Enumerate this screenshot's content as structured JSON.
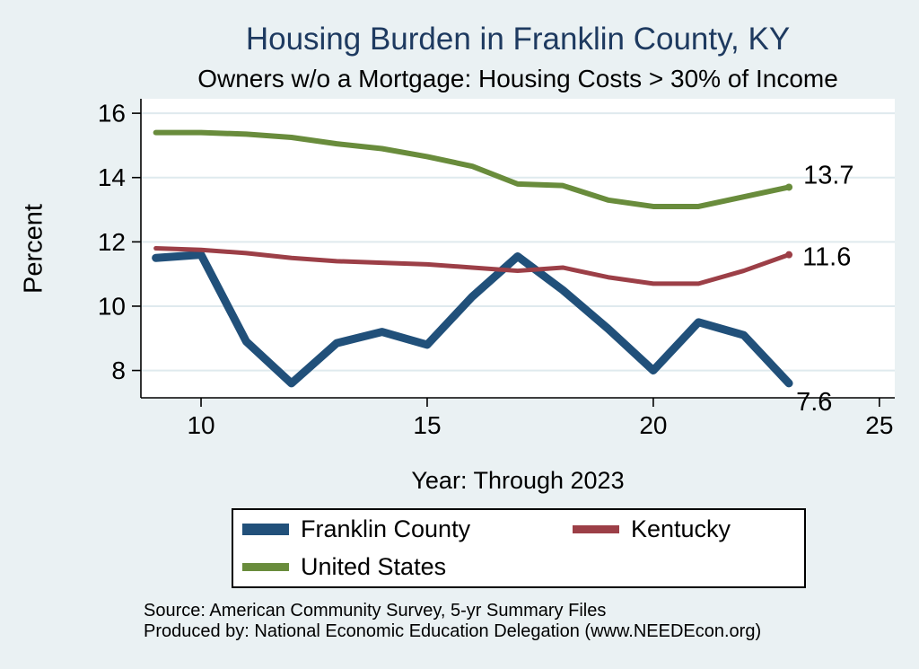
{
  "page": {
    "source_line1": "Source: American Community Survey, 5-yr Summary Files",
    "source_line2": "Produced by: National Economic Education Delegation (www.NEEDEcon.org)"
  },
  "colors": {
    "background": "#eaf1f3",
    "plot_background": "#ffffff",
    "gridline": "#dfeaee",
    "axis": "#000000",
    "title": "#1e3a60",
    "franklin_county": "#21507a",
    "kentucky": "#9c3f47",
    "united_states": "#698c3c"
  },
  "chart_data": {
    "type": "line",
    "title": "Housing Burden in Franklin County, KY",
    "subtitle": "Owners w/o a Mortgage: Housing Costs > 30% of Income",
    "xlabel": "Year: Through 2023",
    "ylabel": "Percent",
    "grid": true,
    "legend_position": "bottom",
    "x": [
      9,
      10,
      11,
      12,
      13,
      14,
      15,
      16,
      17,
      18,
      19,
      20,
      21,
      22,
      23
    ],
    "x_ticks": [
      10,
      15,
      20,
      25
    ],
    "y_ticks": [
      8,
      10,
      12,
      14,
      16
    ],
    "xlim": [
      8.67,
      25.34
    ],
    "ylim": [
      7.15,
      16.45
    ],
    "series": [
      {
        "name": "Franklin County",
        "color": "#21507a",
        "width": 9,
        "values": [
          11.5,
          11.6,
          8.9,
          7.6,
          8.85,
          9.2,
          8.8,
          10.3,
          11.55,
          10.5,
          9.3,
          8.0,
          9.5,
          9.1,
          7.6
        ],
        "end_label": "7.6"
      },
      {
        "name": "Kentucky",
        "color": "#9c3f47",
        "width": 5,
        "values": [
          11.8,
          11.75,
          11.65,
          11.5,
          11.4,
          11.35,
          11.3,
          11.2,
          11.1,
          11.2,
          10.9,
          10.7,
          10.7,
          11.1,
          11.6
        ],
        "end_label": "11.6"
      },
      {
        "name": "United States",
        "color": "#698c3c",
        "width": 6,
        "values": [
          15.4,
          15.4,
          15.35,
          15.25,
          15.05,
          14.9,
          14.65,
          14.35,
          13.8,
          13.75,
          13.3,
          13.1,
          13.1,
          13.4,
          13.7
        ],
        "end_label": "13.7"
      }
    ]
  }
}
